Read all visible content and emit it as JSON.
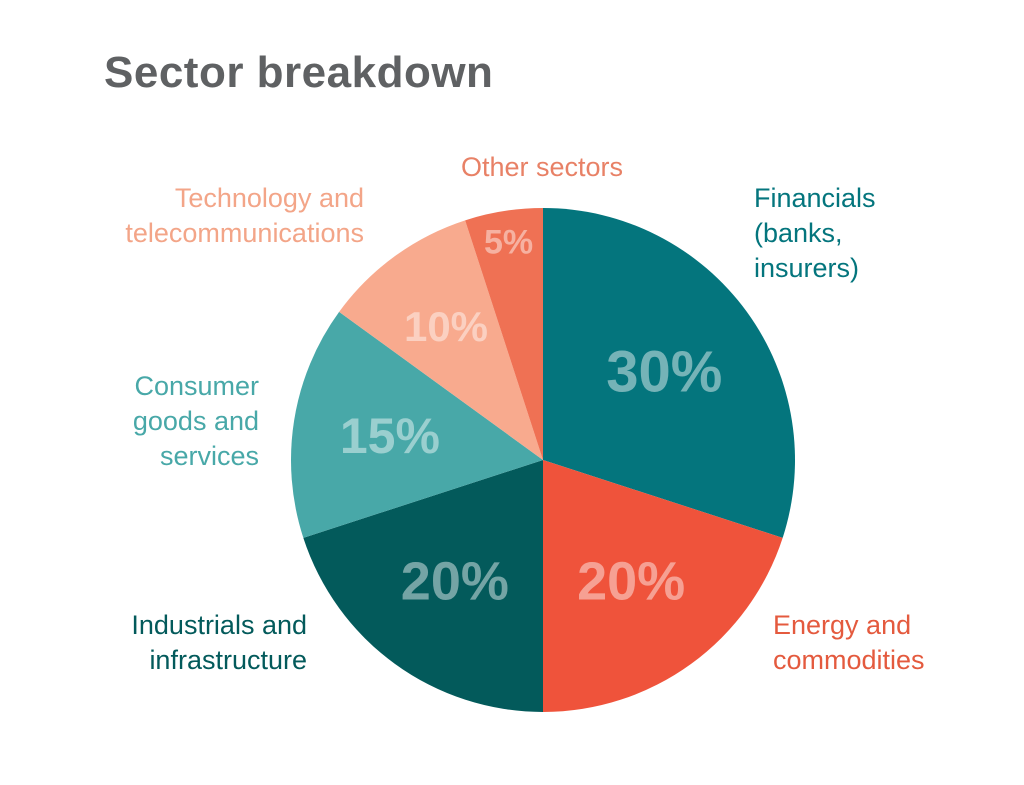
{
  "chart_data": {
    "type": "pie",
    "title": "Sector breakdown",
    "start": "top",
    "direction": "clockwise",
    "slices": [
      {
        "label": "Financials\n(banks,\ninsurers)",
        "value": 30,
        "value_label": "30%",
        "color": "#04757d",
        "label_color": "#04757d"
      },
      {
        "label": "Energy and\ncommodities",
        "value": 20,
        "value_label": "20%",
        "color": "#ef533b",
        "label_color": "#e45a3e"
      },
      {
        "label": "Industrials and\ninfrastructure",
        "value": 20,
        "value_label": "20%",
        "color": "#035a5b",
        "label_color": "#035a5b"
      },
      {
        "label": "Consumer\ngoods and\nservices",
        "value": 15,
        "value_label": "15%",
        "color": "#48a8a8",
        "label_color": "#48a8a8"
      },
      {
        "label": "Technology and\ntelecommunications",
        "value": 10,
        "value_label": "10%",
        "color": "#f8aa8e",
        "label_color": "#f3a588"
      },
      {
        "label": "Other sectors",
        "value": 5,
        "value_label": "5%",
        "color": "#ef7154",
        "label_color": "#e88166"
      }
    ]
  }
}
